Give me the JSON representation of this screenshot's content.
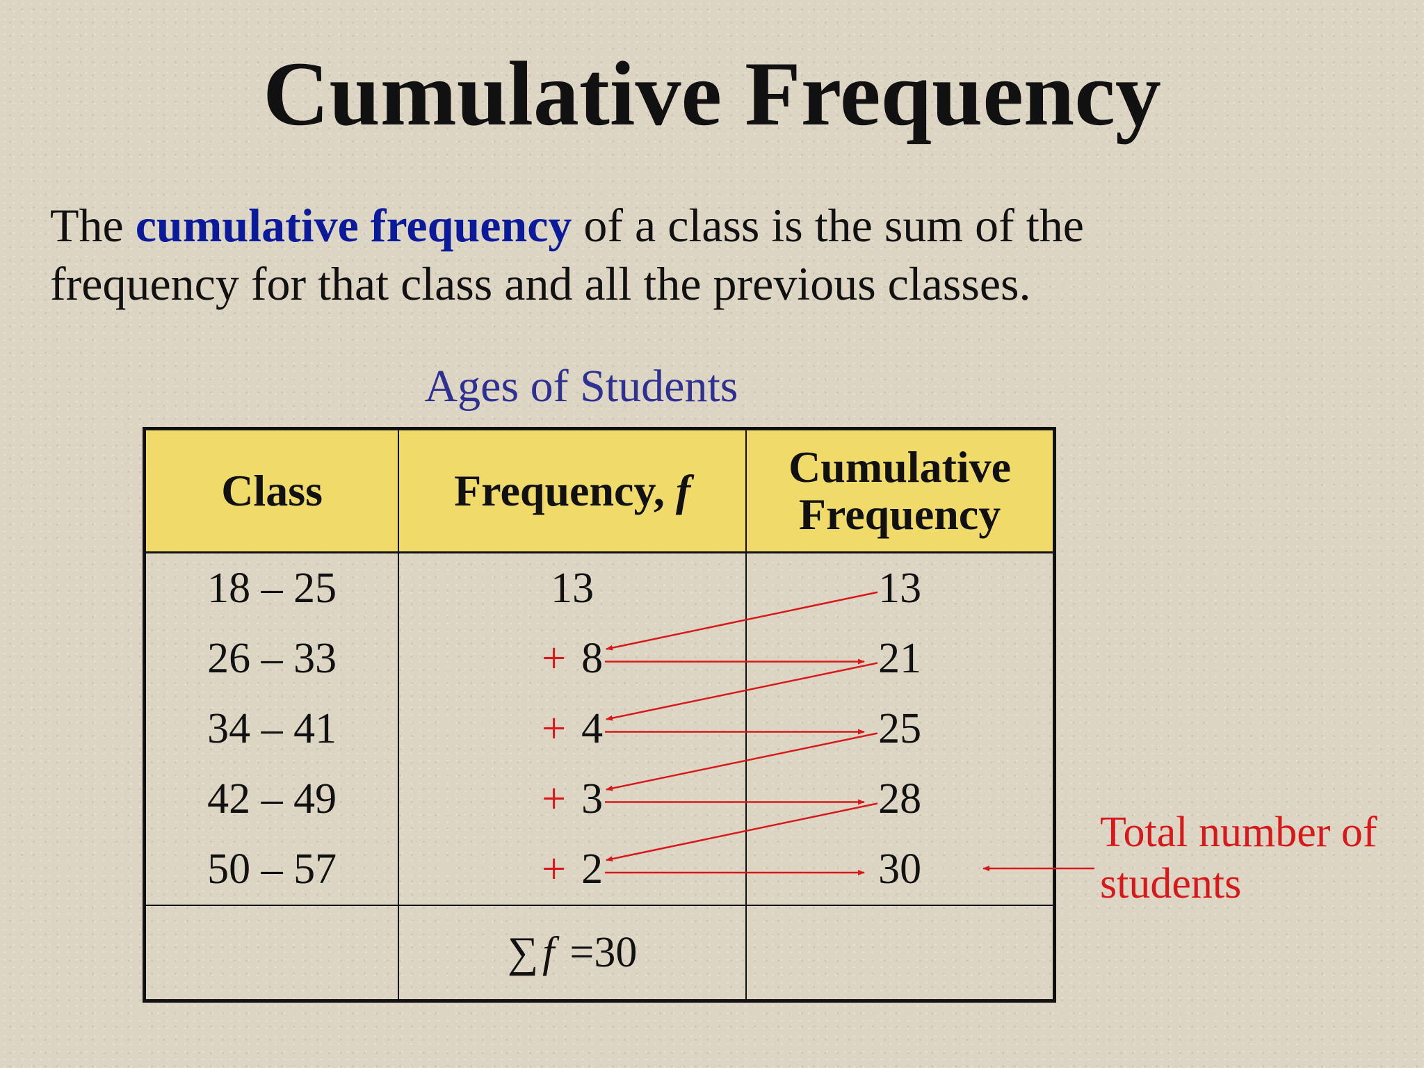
{
  "title": "Cumulative Frequency",
  "definition": {
    "before": "The ",
    "term": "cumulative frequency",
    "after": " of a class is the sum of the frequency for that class and all the previous classes."
  },
  "table": {
    "caption": "Ages of Students",
    "headers": {
      "class": "Class",
      "frequency": "Frequency,",
      "frequency_symbol": "f",
      "cumulative": "Cumulative Frequency"
    },
    "rows": [
      {
        "class": "18 – 25",
        "frequency": "13",
        "cumulative": "13"
      },
      {
        "class": "26 – 33",
        "operator": "+",
        "frequency": "8",
        "cumulative": "21"
      },
      {
        "class": "34 – 41",
        "operator": "+",
        "frequency": "4",
        "cumulative": "25"
      },
      {
        "class": "42 – 49",
        "operator": "+",
        "frequency": "3",
        "cumulative": "28"
      },
      {
        "class": "50 – 57",
        "operator": "+",
        "frequency": "2",
        "cumulative": "30"
      }
    ],
    "sum": {
      "sigma": "∑",
      "symbol": "f",
      "value": "=30"
    }
  },
  "annotation": "Total number of students"
}
